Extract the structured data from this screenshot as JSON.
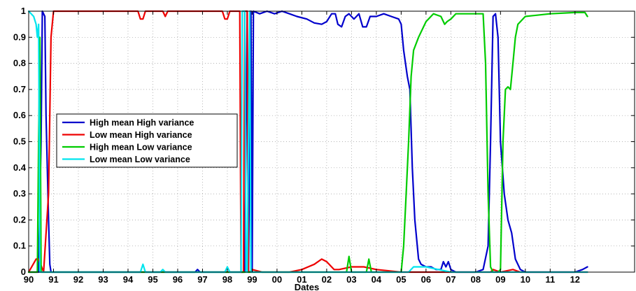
{
  "chart_data": {
    "type": "line",
    "title": "",
    "xlabel": "Dates",
    "ylabel": "",
    "xlim": [
      1990.0,
      2014.4
    ],
    "ylim": [
      0,
      1
    ],
    "grid": true,
    "legend_position": "left-center",
    "x_tick_labels": [
      "90",
      "91",
      "92",
      "93",
      "94",
      "95",
      "96",
      "97",
      "98",
      "99",
      "00",
      "01",
      "02",
      "03",
      "04",
      "05",
      "06",
      "07",
      "08",
      "09",
      "10",
      "11",
      "12"
    ],
    "x_tick_values": [
      1990,
      1991,
      1992,
      1993,
      1994,
      1995,
      1996,
      1997,
      1998,
      1999,
      2000,
      2001,
      2002,
      2003,
      2004,
      2005,
      2006,
      2007,
      2008,
      2009,
      2010,
      2011,
      2012
    ],
    "y_tick_labels": [
      "0",
      "0.1",
      "0.2",
      "0.3",
      "0.4",
      "0.5",
      "0.6",
      "0.7",
      "0.8",
      "0.9",
      "1"
    ],
    "y_tick_values": [
      0,
      0.1,
      0.2,
      0.3,
      0.4,
      0.5,
      0.6,
      0.7,
      0.8,
      0.9,
      1
    ],
    "series": [
      {
        "name": "High mean High variance",
        "color": "#0000cc",
        "points": [
          [
            1990.0,
            0.0
          ],
          [
            1990.4,
            0.0
          ],
          [
            1990.5,
            0.5
          ],
          [
            1990.55,
            1.0
          ],
          [
            1990.65,
            0.98
          ],
          [
            1990.7,
            0.6
          ],
          [
            1990.8,
            0.2
          ],
          [
            1990.85,
            0.03
          ],
          [
            1990.9,
            0.0
          ],
          [
            1996.7,
            0.0
          ],
          [
            1996.8,
            0.01
          ],
          [
            1996.9,
            0.0
          ],
          [
            1998.6,
            0.0
          ],
          [
            1998.7,
            0.0
          ],
          [
            1998.8,
            1.0
          ],
          [
            1998.85,
            0.0
          ],
          [
            1998.95,
            1.0
          ],
          [
            1999.0,
            0.0
          ],
          [
            1999.05,
            1.0
          ],
          [
            1999.3,
            0.99
          ],
          [
            1999.6,
            1.0
          ],
          [
            1999.9,
            0.99
          ],
          [
            2000.2,
            1.0
          ],
          [
            2000.5,
            0.99
          ],
          [
            2000.8,
            0.98
          ],
          [
            2001.2,
            0.97
          ],
          [
            2001.5,
            0.955
          ],
          [
            2001.8,
            0.95
          ],
          [
            2002.0,
            0.96
          ],
          [
            2002.2,
            0.99
          ],
          [
            2002.35,
            0.99
          ],
          [
            2002.45,
            0.95
          ],
          [
            2002.6,
            0.94
          ],
          [
            2002.75,
            0.98
          ],
          [
            2002.9,
            0.99
          ],
          [
            2003.1,
            0.97
          ],
          [
            2003.3,
            0.99
          ],
          [
            2003.45,
            0.94
          ],
          [
            2003.6,
            0.94
          ],
          [
            2003.75,
            0.98
          ],
          [
            2004.0,
            0.98
          ],
          [
            2004.3,
            0.99
          ],
          [
            2004.6,
            0.98
          ],
          [
            2004.9,
            0.97
          ],
          [
            2005.0,
            0.95
          ],
          [
            2005.1,
            0.85
          ],
          [
            2005.25,
            0.75
          ],
          [
            2005.35,
            0.7
          ],
          [
            2005.45,
            0.4
          ],
          [
            2005.55,
            0.2
          ],
          [
            2005.7,
            0.05
          ],
          [
            2005.8,
            0.03
          ],
          [
            2006.0,
            0.02
          ],
          [
            2006.2,
            0.02
          ],
          [
            2006.4,
            0.01
          ],
          [
            2006.6,
            0.01
          ],
          [
            2006.7,
            0.04
          ],
          [
            2006.8,
            0.02
          ],
          [
            2006.9,
            0.04
          ],
          [
            2007.0,
            0.01
          ],
          [
            2007.2,
            0.0
          ],
          [
            2008.0,
            0.0
          ],
          [
            2008.3,
            0.01
          ],
          [
            2008.5,
            0.1
          ],
          [
            2008.6,
            0.5
          ],
          [
            2008.7,
            0.98
          ],
          [
            2008.8,
            0.99
          ],
          [
            2008.9,
            0.9
          ],
          [
            2009.0,
            0.5
          ],
          [
            2009.15,
            0.3
          ],
          [
            2009.3,
            0.2
          ],
          [
            2009.45,
            0.15
          ],
          [
            2009.6,
            0.05
          ],
          [
            2009.8,
            0.01
          ],
          [
            2010.0,
            0.0
          ],
          [
            2012.0,
            0.0
          ],
          [
            2012.3,
            0.01
          ],
          [
            2012.5,
            0.02
          ]
        ]
      },
      {
        "name": "Low mean High variance",
        "color": "#ee0000",
        "points": [
          [
            1990.0,
            0.0
          ],
          [
            1990.3,
            0.05
          ],
          [
            1990.4,
            0.05
          ],
          [
            1990.6,
            0.0
          ],
          [
            1990.8,
            0.3
          ],
          [
            1990.9,
            0.9
          ],
          [
            1991.0,
            1.0
          ],
          [
            1994.4,
            1.0
          ],
          [
            1994.5,
            0.97
          ],
          [
            1994.6,
            0.97
          ],
          [
            1994.7,
            1.0
          ],
          [
            1995.4,
            1.0
          ],
          [
            1995.5,
            0.98
          ],
          [
            1995.6,
            1.0
          ],
          [
            1997.8,
            1.0
          ],
          [
            1997.9,
            0.97
          ],
          [
            1998.0,
            0.97
          ],
          [
            1998.1,
            1.0
          ],
          [
            1998.5,
            1.0
          ],
          [
            1998.55,
            0.0
          ],
          [
            1998.65,
            0.0
          ],
          [
            1998.7,
            1.0
          ],
          [
            1998.8,
            1.0
          ],
          [
            1998.85,
            0.0
          ],
          [
            1998.9,
            0.0
          ],
          [
            1999.0,
            0.01
          ],
          [
            1999.4,
            0.0
          ],
          [
            2000.5,
            0.0
          ],
          [
            2001.0,
            0.01
          ],
          [
            2001.5,
            0.03
          ],
          [
            2001.8,
            0.05
          ],
          [
            2002.0,
            0.04
          ],
          [
            2002.3,
            0.01
          ],
          [
            2002.5,
            0.01
          ],
          [
            2003.0,
            0.02
          ],
          [
            2003.5,
            0.02
          ],
          [
            2004.0,
            0.01
          ],
          [
            2005.0,
            0.0
          ],
          [
            2006.0,
            0.0
          ],
          [
            2008.6,
            0.0
          ],
          [
            2008.7,
            0.01
          ],
          [
            2009.0,
            0.0
          ],
          [
            2009.5,
            0.01
          ],
          [
            2009.8,
            0.0
          ],
          [
            2012.5,
            0.0
          ]
        ]
      },
      {
        "name": "High mean Low variance",
        "color": "#00cc00",
        "points": [
          [
            1990.0,
            0.0
          ],
          [
            1990.35,
            0.0
          ],
          [
            1990.4,
            0.5
          ],
          [
            1990.45,
            0.9
          ],
          [
            1990.5,
            0.0
          ],
          [
            1998.5,
            0.0
          ],
          [
            2001.0,
            0.0
          ],
          [
            2002.8,
            0.0
          ],
          [
            2002.9,
            0.06
          ],
          [
            2003.0,
            0.0
          ],
          [
            2003.6,
            0.0
          ],
          [
            2003.7,
            0.05
          ],
          [
            2003.8,
            0.0
          ],
          [
            2005.0,
            0.0
          ],
          [
            2005.1,
            0.1
          ],
          [
            2005.2,
            0.3
          ],
          [
            2005.3,
            0.5
          ],
          [
            2005.4,
            0.75
          ],
          [
            2005.5,
            0.85
          ],
          [
            2005.7,
            0.9
          ],
          [
            2006.0,
            0.96
          ],
          [
            2006.3,
            0.99
          ],
          [
            2006.6,
            0.98
          ],
          [
            2006.75,
            0.95
          ],
          [
            2006.85,
            0.96
          ],
          [
            2007.0,
            0.97
          ],
          [
            2007.2,
            0.99
          ],
          [
            2007.5,
            0.99
          ],
          [
            2008.0,
            0.99
          ],
          [
            2008.3,
            0.99
          ],
          [
            2008.4,
            0.8
          ],
          [
            2008.5,
            0.3
          ],
          [
            2008.6,
            0.02
          ],
          [
            2008.7,
            0.0
          ],
          [
            2008.9,
            0.0
          ],
          [
            2009.0,
            0.01
          ],
          [
            2009.1,
            0.5
          ],
          [
            2009.2,
            0.7
          ],
          [
            2009.3,
            0.71
          ],
          [
            2009.4,
            0.7
          ],
          [
            2009.5,
            0.8
          ],
          [
            2009.6,
            0.9
          ],
          [
            2009.7,
            0.95
          ],
          [
            2010.0,
            0.98
          ],
          [
            2011.0,
            0.99
          ],
          [
            2012.0,
            0.995
          ],
          [
            2012.4,
            0.995
          ],
          [
            2012.5,
            0.98
          ]
        ]
      },
      {
        "name": "Low mean Low variance",
        "color": "#00e5ee",
        "points": [
          [
            1990.0,
            1.0
          ],
          [
            1990.2,
            0.98
          ],
          [
            1990.3,
            0.95
          ],
          [
            1990.35,
            0.9
          ],
          [
            1990.4,
            0.95
          ],
          [
            1990.45,
            0.0
          ],
          [
            1990.6,
            0.0
          ],
          [
            1994.5,
            0.0
          ],
          [
            1994.6,
            0.03
          ],
          [
            1994.7,
            0.0
          ],
          [
            1995.3,
            0.0
          ],
          [
            1995.4,
            0.01
          ],
          [
            1995.5,
            0.0
          ],
          [
            1997.9,
            0.0
          ],
          [
            1998.0,
            0.02
          ],
          [
            1998.1,
            0.0
          ],
          [
            1998.55,
            0.0
          ],
          [
            1998.6,
            1.0
          ],
          [
            1998.7,
            1.0
          ],
          [
            1998.75,
            0.0
          ],
          [
            1998.8,
            0.0
          ],
          [
            1998.9,
            1.0
          ],
          [
            1998.95,
            0.0
          ],
          [
            1999.5,
            0.0
          ],
          [
            2005.3,
            0.0
          ],
          [
            2005.5,
            0.02
          ],
          [
            2006.0,
            0.02
          ],
          [
            2006.5,
            0.01
          ],
          [
            2007.0,
            0.0
          ],
          [
            2012.5,
            0.0
          ]
        ]
      }
    ]
  }
}
